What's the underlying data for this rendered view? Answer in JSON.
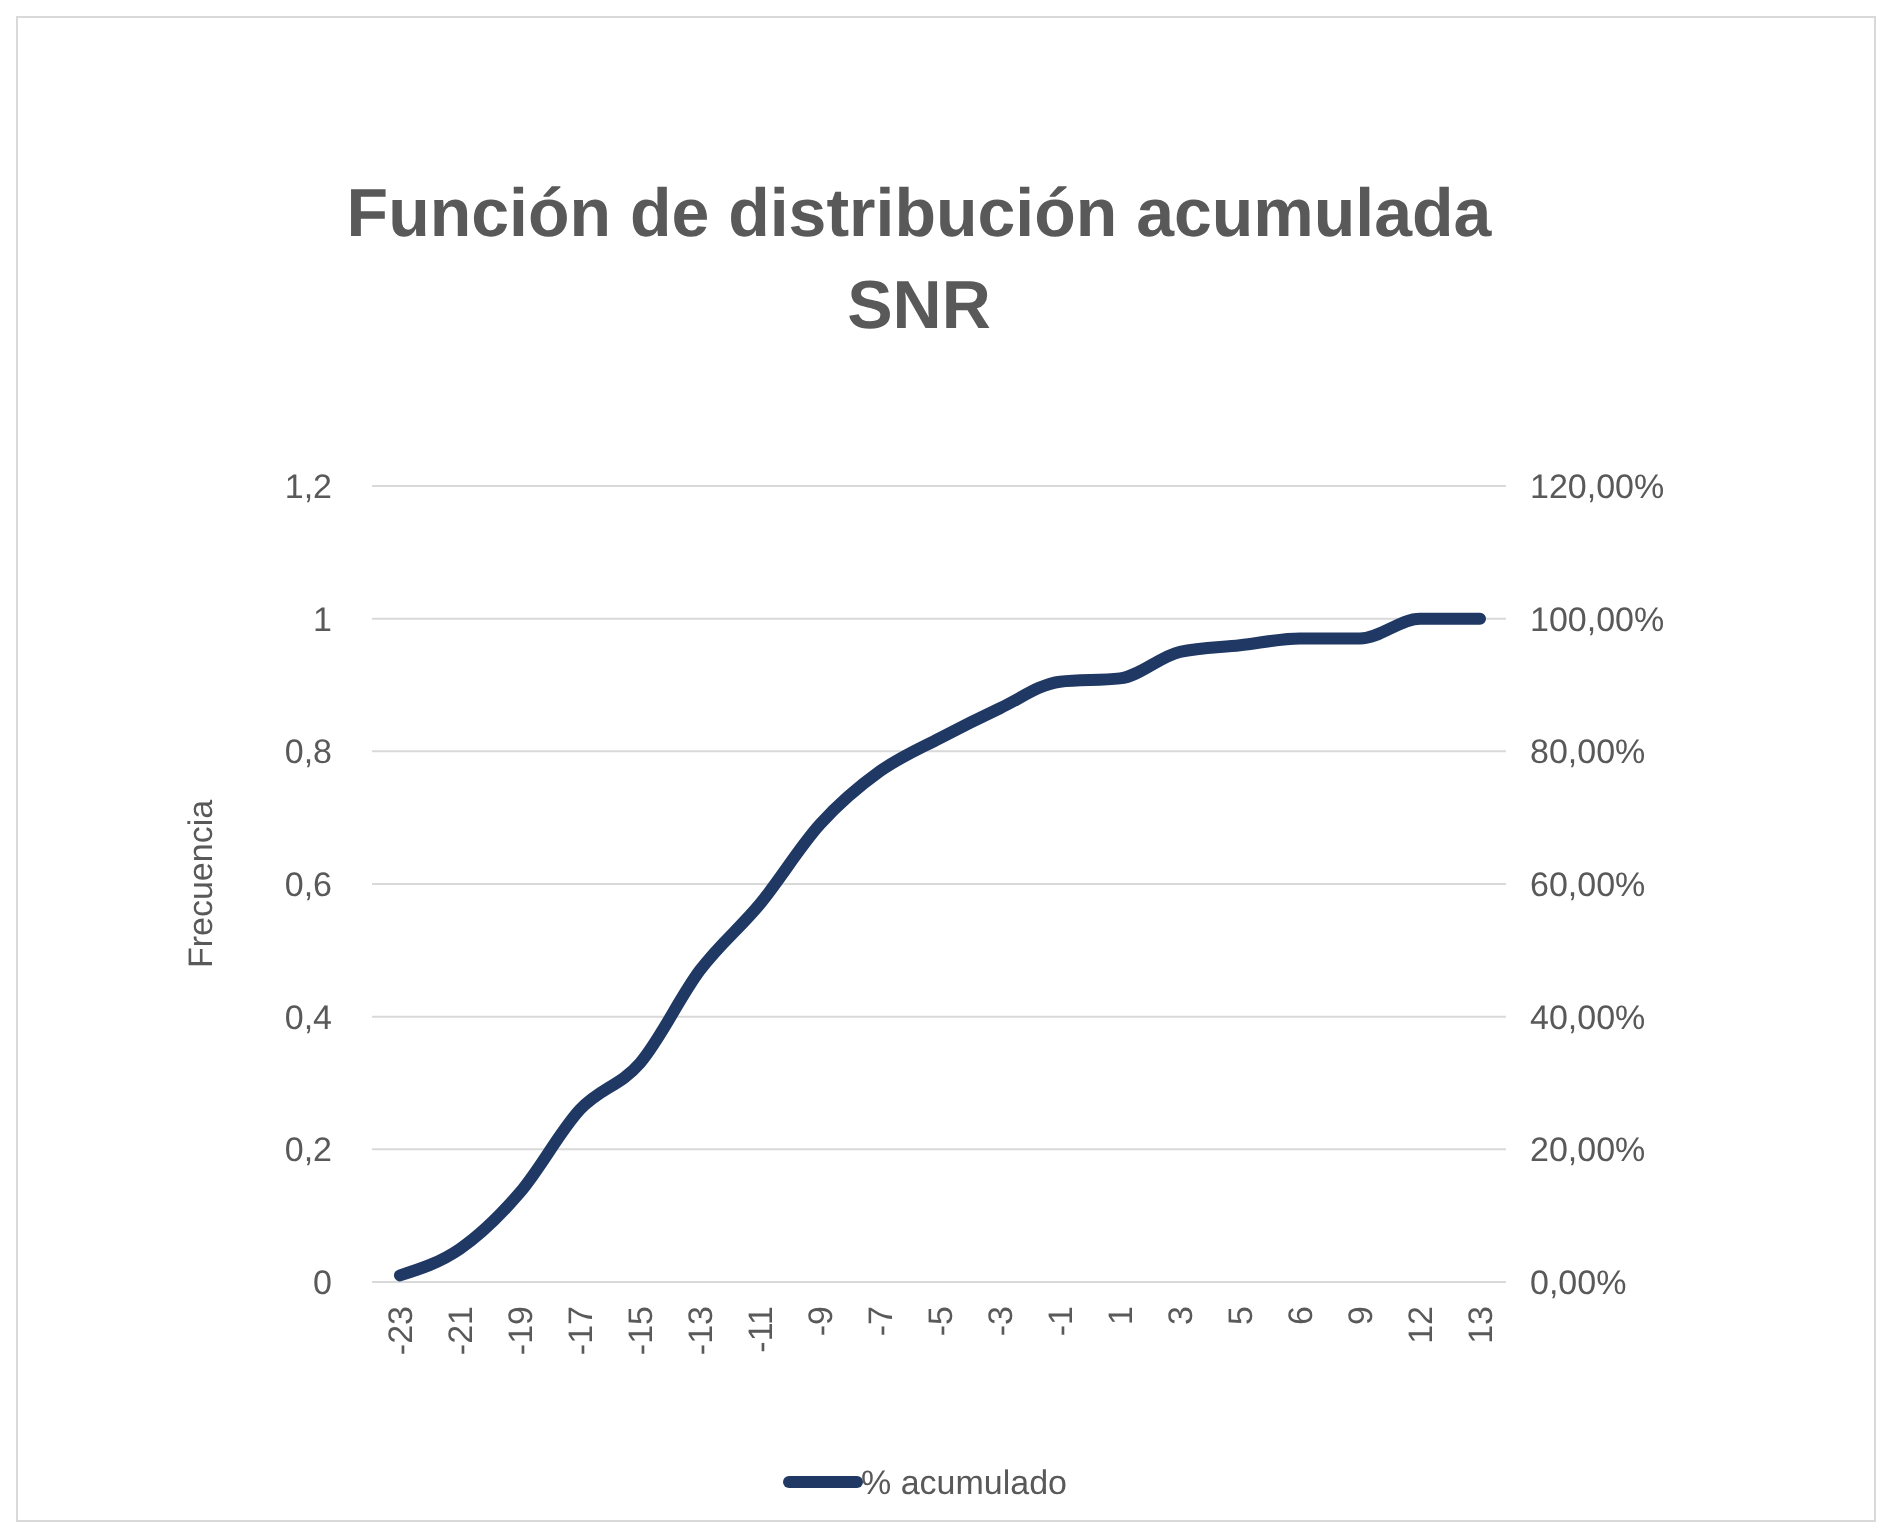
{
  "chart_data": {
    "type": "line",
    "title": "Función de distribución acumulada SNR",
    "ylabel": "Frecuencia",
    "categories": [
      "-23",
      "-21",
      "-19",
      "-17",
      "-15",
      "-13",
      "-11",
      "-9",
      "-7",
      "-5",
      "-3",
      "-1",
      "1",
      "3",
      "5",
      "6",
      "9",
      "12",
      "13"
    ],
    "series": [
      {
        "name": "% acumulado",
        "color": "#203864",
        "axis": "y2",
        "values": [
          1,
          5,
          13.5,
          26,
          33,
          47,
          57,
          69,
          77,
          82,
          86.5,
          90.5,
          91,
          95,
          96,
          97,
          97,
          100,
          100
        ]
      }
    ],
    "ylim": [
      0,
      1.2
    ],
    "yticks": [
      0,
      {
        "value": 0.2,
        "label": "0,2"
      },
      {
        "value": 0.4,
        "label": "0,4"
      },
      {
        "value": 0.6,
        "label": "0,6"
      },
      {
        "value": 0.8,
        "label": "0,8"
      },
      1,
      {
        "value": 1.2,
        "label": "1,2"
      }
    ],
    "y2lim": [
      0,
      120
    ],
    "y2ticks": [
      {
        "value": 0,
        "label": "0,00%"
      },
      {
        "value": 20,
        "label": "20,00%"
      },
      {
        "value": 40,
        "label": "40,00%"
      },
      {
        "value": 60,
        "label": "60,00%"
      },
      {
        "value": 80,
        "label": "80,00%"
      },
      {
        "value": 100,
        "label": "100,00%"
      },
      {
        "value": 120,
        "label": "120,00%"
      }
    ],
    "grid": "y",
    "legend": "bottom",
    "marker": "none",
    "line_style": "solid"
  }
}
